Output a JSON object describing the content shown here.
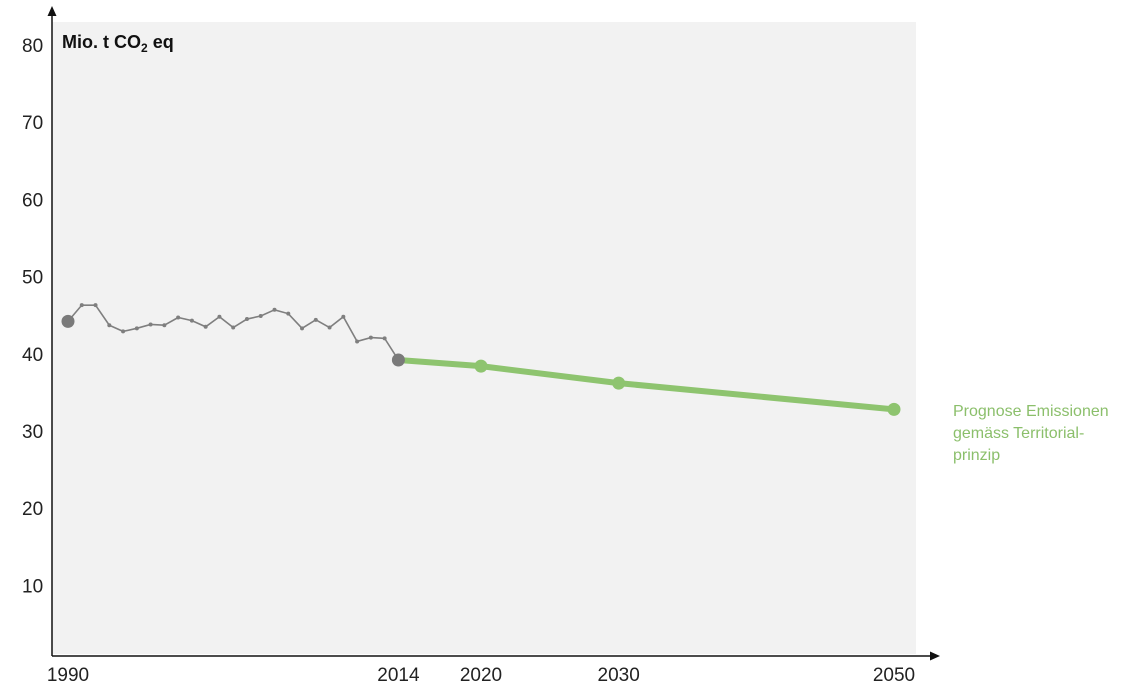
{
  "chart_data": {
    "type": "line",
    "ylabel": {
      "prefix": "Mio. t CO",
      "subscript": "2",
      "suffix": " eq"
    },
    "ylim": [
      0,
      80
    ],
    "yticks": [
      10,
      20,
      30,
      40,
      50,
      60,
      70,
      80
    ],
    "xticks": [
      1990,
      2014,
      2020,
      2030,
      2050
    ],
    "xlim": [
      1990,
      2050
    ],
    "colors": {
      "historic": "#7f7f7f",
      "historic_marker": "#7a7a7a",
      "forecast": "#8ec46f",
      "plot_bg": "#f2f2f2"
    },
    "series": [
      {
        "x": [
          1990,
          1991,
          1992,
          1993,
          1994,
          1995,
          1996,
          1997,
          1998,
          1999,
          2000,
          2001,
          2002,
          2003,
          2004,
          2005,
          2006,
          2007,
          2008,
          2009,
          2010,
          2011,
          2012,
          2013,
          2014
        ],
        "y": [
          44.2,
          46.3,
          46.3,
          43.7,
          42.9,
          43.3,
          43.8,
          43.7,
          44.7,
          44.3,
          43.5,
          44.8,
          43.4,
          44.5,
          44.9,
          45.7,
          45.2,
          43.3,
          44.4,
          43.4,
          44.8,
          41.6,
          42.1,
          42.0,
          39.2
        ],
        "markers": "small",
        "endpoint_markers": [
          1990,
          2014
        ]
      },
      {
        "x": [
          2014,
          2020,
          2030,
          2050
        ],
        "y": [
          39.2,
          38.4,
          36.2,
          32.8
        ],
        "markers": "large"
      }
    ],
    "annotation": [
      "Prognose Emissionen",
      "gemäss Territorial-",
      "prinzip"
    ]
  }
}
